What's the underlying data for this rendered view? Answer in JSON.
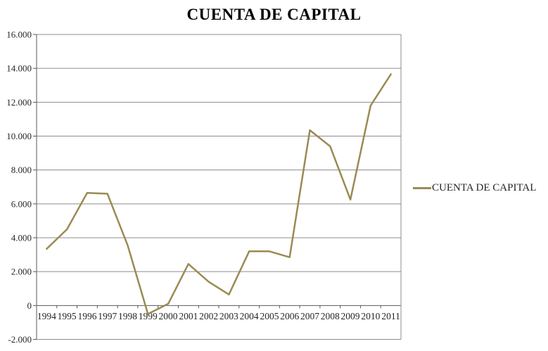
{
  "title": "CUENTA DE CAPITAL",
  "legend": {
    "label": "CUENTA DE CAPITAL",
    "swatch_color": "#9A8B54"
  },
  "colors": {
    "line": "#9A8B54",
    "gridline": "#8C8C8C",
    "axis": "#595959",
    "text": "#262626",
    "background": "#FFFFFF"
  },
  "chart_data": {
    "type": "line",
    "title": "CUENTA DE CAPITAL",
    "categories": [
      "1994",
      "1995",
      "1996",
      "1997",
      "1998",
      "1999",
      "2000",
      "2001",
      "2002",
      "2003",
      "2004",
      "2005",
      "2006",
      "2007",
      "2008",
      "2009",
      "2010",
      "2011"
    ],
    "series": [
      {
        "name": "CUENTA DE CAPITAL",
        "color": "#9A8B54",
        "values": [
          3350,
          4500,
          6650,
          6600,
          3550,
          -500,
          100,
          2450,
          1400,
          650,
          3200,
          3200,
          2850,
          10350,
          9400,
          6250,
          11800,
          13650
        ]
      }
    ],
    "xlabel": "",
    "ylabel": "",
    "ylim": [
      -2000,
      16000
    ],
    "ytick_step": 2000,
    "yticks": [
      {
        "value": 16000,
        "label": "16.000"
      },
      {
        "value": 14000,
        "label": "14.000"
      },
      {
        "value": 12000,
        "label": "12.000"
      },
      {
        "value": 10000,
        "label": "10.000"
      },
      {
        "value": 8000,
        "label": "8.000"
      },
      {
        "value": 6000,
        "label": "6.000"
      },
      {
        "value": 4000,
        "label": "4.000"
      },
      {
        "value": 2000,
        "label": "2.000"
      },
      {
        "value": 0,
        "label": "0"
      },
      {
        "value": -2000,
        "label": "-2.000"
      }
    ],
    "grid": true,
    "legend_position": "right"
  }
}
